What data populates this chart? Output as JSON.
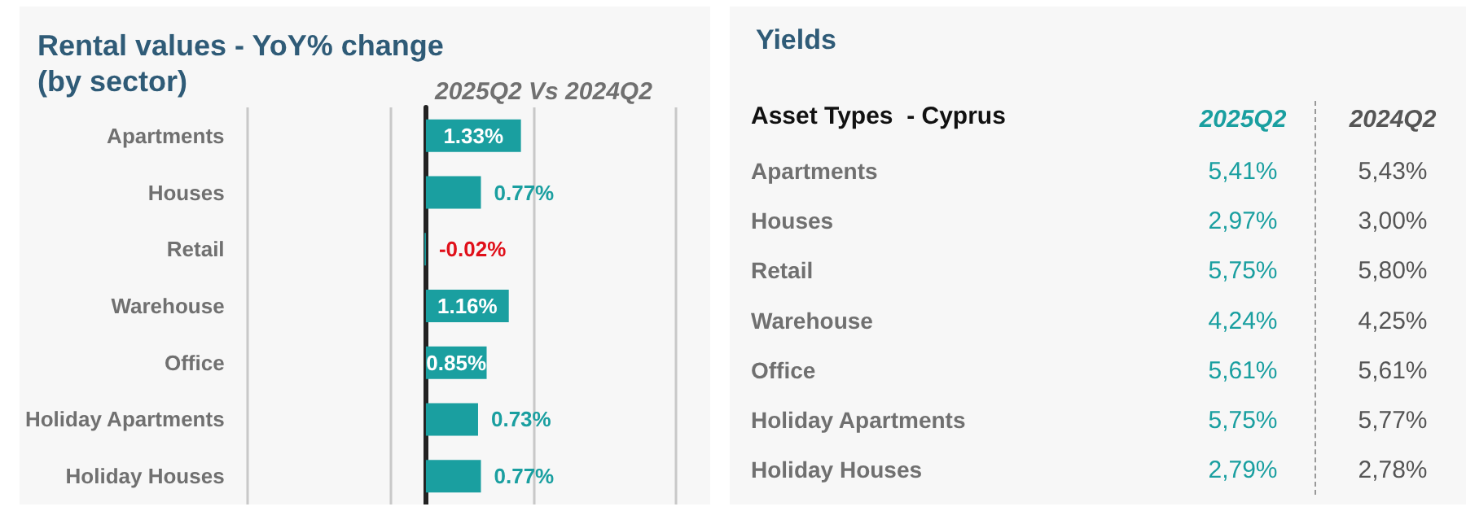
{
  "chart_data": [
    {
      "type": "bar",
      "orientation": "horizontal",
      "title": "Rental values - YoY% change\n(by sector)",
      "subtitle": "2025Q2 Vs 2024Q2",
      "categories": [
        "Apartments",
        "Houses",
        "Retail",
        "Warehouse",
        "Office",
        "Holiday Apartments",
        "Holiday Houses"
      ],
      "values": [
        1.33,
        0.77,
        -0.02,
        1.16,
        0.85,
        0.73,
        0.77
      ],
      "value_labels": [
        "1.33%",
        "0.77%",
        "-0.02%",
        "1.16%",
        "0.85%",
        "0.73%",
        "0.77%"
      ],
      "color": "#1a9fa0",
      "xlim": [
        -2.5,
        3.5
      ],
      "xticks": [
        {
          "value": -2.5,
          "label": null
        },
        {
          "value": -0.5,
          "label": null
        },
        {
          "value": 1.5,
          "label": null
        },
        {
          "value": 3.5,
          "label": null
        }
      ],
      "grid": "x",
      "tick_labels": "y"
    },
    {
      "type": "other",
      "title": "Yields",
      "xlabel": "Asset Types  - Cyprus",
      "categories": [
        "Apartments",
        "Houses",
        "Retail",
        "Warehouse",
        "Office",
        "Holiday Apartments",
        "Holiday Houses"
      ],
      "series": [
        {
          "name": "2025Q2",
          "values": [
            5.41,
            2.97,
            5.75,
            4.24,
            5.61,
            5.75,
            2.79
          ],
          "value_labels": [
            "5,41%",
            "2,97%",
            "5,75%",
            "4,24%",
            "5,61%",
            "5,75%",
            "2,79%"
          ]
        },
        {
          "name": "2024Q2",
          "values": [
            5.43,
            3.0,
            5.8,
            4.25,
            5.61,
            5.77,
            2.78
          ],
          "value_labels": [
            "5,43%",
            "3,00%",
            "5,80%",
            "4,25%",
            "5,61%",
            "5,77%",
            "2,78%"
          ]
        }
      ]
    }
  ]
}
